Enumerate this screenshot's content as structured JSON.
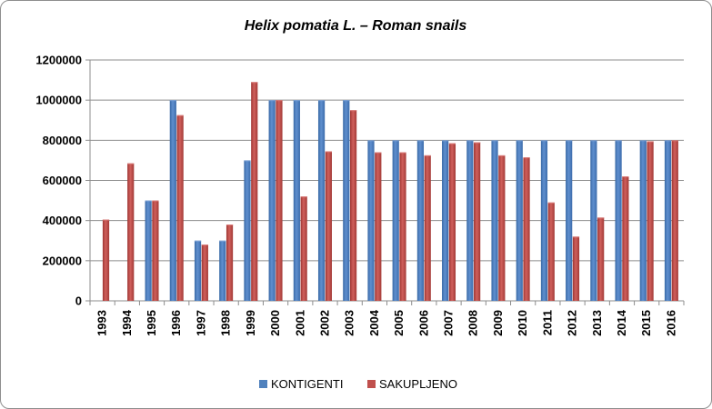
{
  "chart_data": {
    "type": "bar",
    "title": "Helix pomatia L. – Roman snails",
    "xlabel": "",
    "ylabel": "",
    "ylim": [
      0,
      1200000
    ],
    "yticks": [
      "0",
      "200000",
      "400000",
      "600000",
      "800000",
      "1000000",
      "1200000"
    ],
    "ytick_values": [
      0,
      200000,
      400000,
      600000,
      800000,
      1000000,
      1200000
    ],
    "categories": [
      "1993",
      "1994",
      "1995",
      "1996",
      "1997",
      "1998",
      "1999",
      "2000",
      "2001",
      "2002",
      "2003",
      "2004",
      "2005",
      "2006",
      "2007",
      "2008",
      "2009",
      "2010",
      "2011",
      "2012",
      "2013",
      "2014",
      "2015",
      "2016"
    ],
    "series": [
      {
        "name": "KONTIGENTI",
        "color": "#4f81bd",
        "values": [
          0,
          0,
          500000,
          1000000,
          300000,
          300000,
          700000,
          1000000,
          1000000,
          1000000,
          1000000,
          800000,
          800000,
          800000,
          800000,
          800000,
          800000,
          800000,
          800000,
          800000,
          800000,
          800000,
          800000,
          800000
        ]
      },
      {
        "name": "SAKUPLJENO",
        "color": "#c0504d",
        "values": [
          405000,
          685000,
          500000,
          925000,
          280000,
          380000,
          1090000,
          1000000,
          520000,
          745000,
          950000,
          740000,
          740000,
          725000,
          785000,
          790000,
          725000,
          715000,
          490000,
          320000,
          415000,
          620000,
          795000,
          800000
        ]
      }
    ],
    "legend_position": "bottom",
    "grid": true
  }
}
